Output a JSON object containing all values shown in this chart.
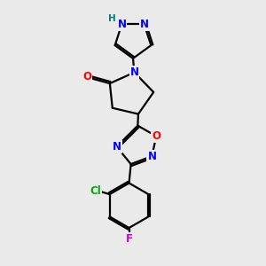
{
  "bg_color": "#eaeaea",
  "bond_color": "#000000",
  "bond_width": 1.6,
  "atom_colors": {
    "N": "#0000ff",
    "O": "#ff0000",
    "Cl": "#00aa00",
    "F": "#cc00cc",
    "H": "#008080",
    "C": "#000000"
  },
  "font_size": 8.5,
  "fig_width": 3.0,
  "fig_height": 3.0
}
